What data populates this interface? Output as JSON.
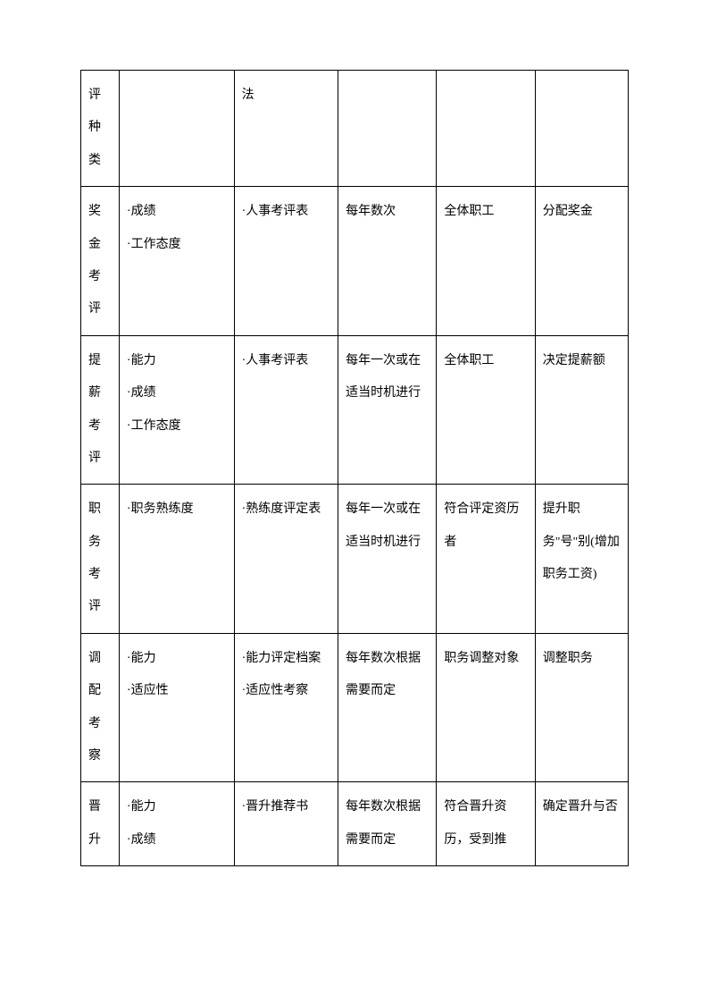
{
  "table": {
    "border_color": "#000000",
    "background_color": "#ffffff",
    "text_color": "#000000",
    "font_size": 14,
    "line_height": 2.6,
    "columns": [
      {
        "width": "7%",
        "id": "category"
      },
      {
        "width": "21%",
        "id": "criteria"
      },
      {
        "width": "19%",
        "id": "method"
      },
      {
        "width": "18%",
        "id": "frequency"
      },
      {
        "width": "18%",
        "id": "target"
      },
      {
        "width": "17%",
        "id": "purpose"
      }
    ],
    "rows": [
      {
        "col1": "评种类",
        "col2": "",
        "col3": "法",
        "col4": "",
        "col5": "",
        "col6": ""
      },
      {
        "col1": "奖金考评",
        "col2": "·成绩\n·工作态度",
        "col3": "·人事考评表",
        "col4": "每年数次",
        "col5": "全体职工",
        "col6": "分配奖金"
      },
      {
        "col1": "提薪考评",
        "col2": "·能力\n·成绩\n·工作态度",
        "col3": "·人事考评表",
        "col4": "每年一次或在适当时机进行",
        "col5": "全体职工",
        "col6": "决定提薪额"
      },
      {
        "col1": "职务考评",
        "col2": "·职务熟练度",
        "col3": "·熟练度评定表",
        "col4": "每年一次或在适当时机进行",
        "col5": "符合评定资历者",
        "col6": "提升职务\"号\"别(增加职务工资)"
      },
      {
        "col1": "调配考察",
        "col2": "·能力\n·适应性",
        "col3": "·能力评定档案\n·适应性考察",
        "col4": "每年数次根据需要而定",
        "col5": "职务调整对象",
        "col6": "调整职务"
      },
      {
        "col1": "晋升",
        "col2": "·能力\n·成绩",
        "col3": "·晋升推荐书",
        "col4": "每年数次根据需要而定",
        "col5": "符合晋升资历，受到推",
        "col6": "确定晋升与否"
      }
    ]
  }
}
